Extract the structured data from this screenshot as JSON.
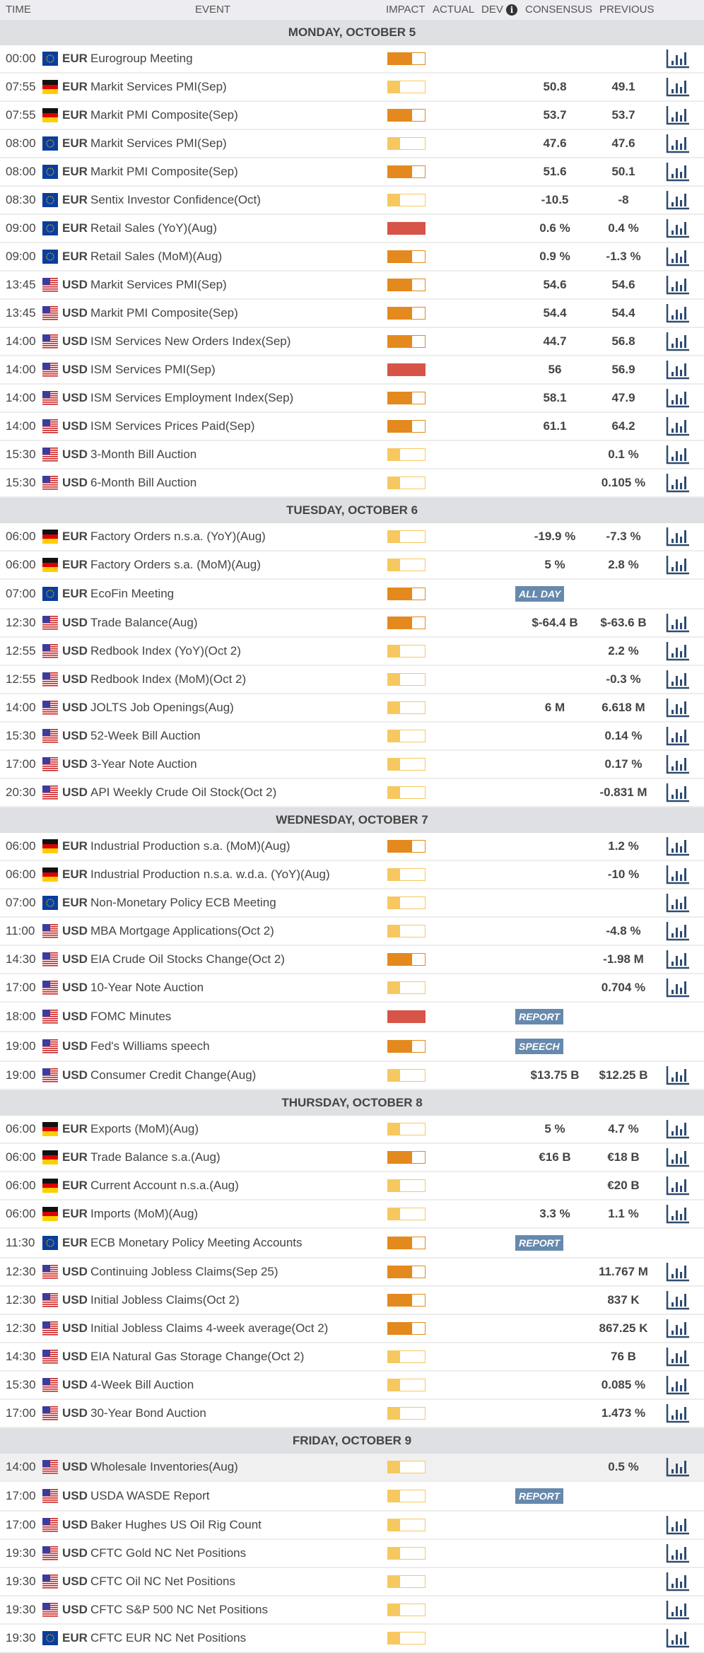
{
  "header": {
    "time": "TIME",
    "event": "EVENT",
    "impact": "IMPACT",
    "actual": "ACTUAL",
    "dev": "DEV",
    "info_icon": "i",
    "consensus": "CONSENSUS",
    "previous": "PREVIOUS"
  },
  "colors": {
    "low": "#f6c85f",
    "medium": "#e4891d",
    "high": "#d65548",
    "badge": "#6689ad",
    "chart_icon": "#2f4b6e"
  },
  "impact_levels": {
    "low": 0.33,
    "medium": 0.66,
    "high": 1
  },
  "days": [
    {
      "label": "MONDAY, OCTOBER 5",
      "events": [
        {
          "time": "00:00",
          "flag": "eu",
          "currency": "EUR",
          "event": "Eurogroup Meeting",
          "impact": "medium",
          "consensus": "",
          "previous": "",
          "chart": true
        },
        {
          "time": "07:55",
          "flag": "de",
          "currency": "EUR",
          "event": "Markit Services PMI(Sep)",
          "impact": "low",
          "consensus": "50.8",
          "previous": "49.1",
          "chart": true
        },
        {
          "time": "07:55",
          "flag": "de",
          "currency": "EUR",
          "event": "Markit PMI Composite(Sep)",
          "impact": "medium",
          "consensus": "53.7",
          "previous": "53.7",
          "chart": true
        },
        {
          "time": "08:00",
          "flag": "eu",
          "currency": "EUR",
          "event": "Markit Services PMI(Sep)",
          "impact": "low",
          "consensus": "47.6",
          "previous": "47.6",
          "chart": true
        },
        {
          "time": "08:00",
          "flag": "eu",
          "currency": "EUR",
          "event": "Markit PMI Composite(Sep)",
          "impact": "medium",
          "consensus": "51.6",
          "previous": "50.1",
          "chart": true
        },
        {
          "time": "08:30",
          "flag": "eu",
          "currency": "EUR",
          "event": "Sentix Investor Confidence(Oct)",
          "impact": "low",
          "consensus": "-10.5",
          "previous": "-8",
          "chart": true
        },
        {
          "time": "09:00",
          "flag": "eu",
          "currency": "EUR",
          "event": "Retail Sales (YoY)(Aug)",
          "impact": "high",
          "consensus": "0.6 %",
          "previous": "0.4 %",
          "chart": true
        },
        {
          "time": "09:00",
          "flag": "eu",
          "currency": "EUR",
          "event": "Retail Sales (MoM)(Aug)",
          "impact": "medium",
          "consensus": "0.9 %",
          "previous": "-1.3 %",
          "chart": true
        },
        {
          "time": "13:45",
          "flag": "us",
          "currency": "USD",
          "event": "Markit Services PMI(Sep)",
          "impact": "medium",
          "consensus": "54.6",
          "previous": "54.6",
          "chart": true
        },
        {
          "time": "13:45",
          "flag": "us",
          "currency": "USD",
          "event": "Markit PMI Composite(Sep)",
          "impact": "medium",
          "consensus": "54.4",
          "previous": "54.4",
          "chart": true
        },
        {
          "time": "14:00",
          "flag": "us",
          "currency": "USD",
          "event": "ISM Services New Orders Index(Sep)",
          "impact": "medium",
          "consensus": "44.7",
          "previous": "56.8",
          "chart": true
        },
        {
          "time": "14:00",
          "flag": "us",
          "currency": "USD",
          "event": "ISM Services PMI(Sep)",
          "impact": "high",
          "consensus": "56",
          "previous": "56.9",
          "chart": true
        },
        {
          "time": "14:00",
          "flag": "us",
          "currency": "USD",
          "event": "ISM Services Employment Index(Sep)",
          "impact": "medium",
          "consensus": "58.1",
          "previous": "47.9",
          "chart": true
        },
        {
          "time": "14:00",
          "flag": "us",
          "currency": "USD",
          "event": "ISM Services Prices Paid(Sep)",
          "impact": "medium",
          "consensus": "61.1",
          "previous": "64.2",
          "chart": true
        },
        {
          "time": "15:30",
          "flag": "us",
          "currency": "USD",
          "event": "3-Month Bill Auction",
          "impact": "low",
          "consensus": "",
          "previous": "0.1 %",
          "chart": true
        },
        {
          "time": "15:30",
          "flag": "us",
          "currency": "USD",
          "event": "6-Month Bill Auction",
          "impact": "low",
          "consensus": "",
          "previous": "0.105 %",
          "chart": true
        }
      ]
    },
    {
      "label": "TUESDAY, OCTOBER 6",
      "events": [
        {
          "time": "06:00",
          "flag": "de",
          "currency": "EUR",
          "event": "Factory Orders n.s.a. (YoY)(Aug)",
          "impact": "low",
          "consensus": "-19.9 %",
          "previous": "-7.3 %",
          "chart": true
        },
        {
          "time": "06:00",
          "flag": "de",
          "currency": "EUR",
          "event": "Factory Orders s.a. (MoM)(Aug)",
          "impact": "low",
          "consensus": "5 %",
          "previous": "2.8 %",
          "chart": true
        },
        {
          "time": "07:00",
          "flag": "eu",
          "currency": "EUR",
          "event": "EcoFin Meeting",
          "impact": "medium",
          "badge": "ALL DAY",
          "consensus": "",
          "previous": "",
          "chart": false
        },
        {
          "time": "12:30",
          "flag": "us",
          "currency": "USD",
          "event": "Trade Balance(Aug)",
          "impact": "medium",
          "consensus": "$-64.4 B",
          "previous": "$-63.6 B",
          "chart": true
        },
        {
          "time": "12:55",
          "flag": "us",
          "currency": "USD",
          "event": "Redbook Index (YoY)(Oct 2)",
          "impact": "low",
          "consensus": "",
          "previous": "2.2 %",
          "chart": true
        },
        {
          "time": "12:55",
          "flag": "us",
          "currency": "USD",
          "event": "Redbook Index (MoM)(Oct 2)",
          "impact": "low",
          "consensus": "",
          "previous": "-0.3 %",
          "chart": true
        },
        {
          "time": "14:00",
          "flag": "us",
          "currency": "USD",
          "event": "JOLTS Job Openings(Aug)",
          "impact": "low",
          "consensus": "6 M",
          "previous": "6.618 M",
          "chart": true
        },
        {
          "time": "15:30",
          "flag": "us",
          "currency": "USD",
          "event": "52-Week Bill Auction",
          "impact": "low",
          "consensus": "",
          "previous": "0.14 %",
          "chart": true
        },
        {
          "time": "17:00",
          "flag": "us",
          "currency": "USD",
          "event": "3-Year Note Auction",
          "impact": "low",
          "consensus": "",
          "previous": "0.17 %",
          "chart": true
        },
        {
          "time": "20:30",
          "flag": "us",
          "currency": "USD",
          "event": "API Weekly Crude Oil Stock(Oct 2)",
          "impact": "low",
          "consensus": "",
          "previous": "-0.831 M",
          "chart": true
        }
      ]
    },
    {
      "label": "WEDNESDAY, OCTOBER 7",
      "events": [
        {
          "time": "06:00",
          "flag": "de",
          "currency": "EUR",
          "event": "Industrial Production s.a. (MoM)(Aug)",
          "impact": "medium",
          "consensus": "",
          "previous": "1.2 %",
          "chart": true
        },
        {
          "time": "06:00",
          "flag": "de",
          "currency": "EUR",
          "event": "Industrial Production n.s.a. w.d.a. (YoY)(Aug)",
          "impact": "low",
          "consensus": "",
          "previous": "-10 %",
          "chart": true
        },
        {
          "time": "07:00",
          "flag": "eu",
          "currency": "EUR",
          "event": "Non-Monetary Policy ECB Meeting",
          "impact": "low",
          "consensus": "",
          "previous": "",
          "chart": true
        },
        {
          "time": "11:00",
          "flag": "us",
          "currency": "USD",
          "event": "MBA Mortgage Applications(Oct 2)",
          "impact": "low",
          "consensus": "",
          "previous": "-4.8 %",
          "chart": true
        },
        {
          "time": "14:30",
          "flag": "us",
          "currency": "USD",
          "event": "EIA Crude Oil Stocks Change(Oct 2)",
          "impact": "medium",
          "consensus": "",
          "previous": "-1.98 M",
          "chart": true
        },
        {
          "time": "17:00",
          "flag": "us",
          "currency": "USD",
          "event": "10-Year Note Auction",
          "impact": "low",
          "consensus": "",
          "previous": "0.704 %",
          "chart": true
        },
        {
          "time": "18:00",
          "flag": "us",
          "currency": "USD",
          "event": "FOMC Minutes",
          "impact": "high",
          "badge": "REPORT",
          "consensus": "",
          "previous": "",
          "chart": false
        },
        {
          "time": "19:00",
          "flag": "us",
          "currency": "USD",
          "event": "Fed's Williams speech",
          "impact": "medium",
          "badge": "SPEECH",
          "consensus": "",
          "previous": "",
          "chart": false
        },
        {
          "time": "19:00",
          "flag": "us",
          "currency": "USD",
          "event": "Consumer Credit Change(Aug)",
          "impact": "low",
          "consensus": "$13.75 B",
          "previous": "$12.25 B",
          "chart": true
        }
      ]
    },
    {
      "label": "THURSDAY, OCTOBER 8",
      "events": [
        {
          "time": "06:00",
          "flag": "de",
          "currency": "EUR",
          "event": "Exports (MoM)(Aug)",
          "impact": "low",
          "consensus": "5 %",
          "previous": "4.7 %",
          "chart": true
        },
        {
          "time": "06:00",
          "flag": "de",
          "currency": "EUR",
          "event": "Trade Balance s.a.(Aug)",
          "impact": "medium",
          "consensus": "€16 B",
          "previous": "€18 B",
          "chart": true
        },
        {
          "time": "06:00",
          "flag": "de",
          "currency": "EUR",
          "event": "Current Account n.s.a.(Aug)",
          "impact": "low",
          "consensus": "",
          "previous": "€20 B",
          "chart": true
        },
        {
          "time": "06:00",
          "flag": "de",
          "currency": "EUR",
          "event": "Imports (MoM)(Aug)",
          "impact": "low",
          "consensus": "3.3 %",
          "previous": "1.1 %",
          "chart": true
        },
        {
          "time": "11:30",
          "flag": "eu",
          "currency": "EUR",
          "event": "ECB Monetary Policy Meeting Accounts",
          "impact": "medium",
          "badge": "REPORT",
          "consensus": "",
          "previous": "",
          "chart": false
        },
        {
          "time": "12:30",
          "flag": "us",
          "currency": "USD",
          "event": "Continuing Jobless Claims(Sep 25)",
          "impact": "medium",
          "consensus": "",
          "previous": "11.767 M",
          "chart": true
        },
        {
          "time": "12:30",
          "flag": "us",
          "currency": "USD",
          "event": "Initial Jobless Claims(Oct 2)",
          "impact": "medium",
          "consensus": "",
          "previous": "837 K",
          "chart": true
        },
        {
          "time": "12:30",
          "flag": "us",
          "currency": "USD",
          "event": "Initial Jobless Claims 4-week average(Oct 2)",
          "impact": "medium",
          "consensus": "",
          "previous": "867.25 K",
          "chart": true
        },
        {
          "time": "14:30",
          "flag": "us",
          "currency": "USD",
          "event": "EIA Natural Gas Storage Change(Oct 2)",
          "impact": "low",
          "consensus": "",
          "previous": "76 B",
          "chart": true
        },
        {
          "time": "15:30",
          "flag": "us",
          "currency": "USD",
          "event": "4-Week Bill Auction",
          "impact": "low",
          "consensus": "",
          "previous": "0.085 %",
          "chart": true
        },
        {
          "time": "17:00",
          "flag": "us",
          "currency": "USD",
          "event": "30-Year Bond Auction",
          "impact": "low",
          "consensus": "",
          "previous": "1.473 %",
          "chart": true
        }
      ]
    },
    {
      "label": "FRIDAY, OCTOBER 9",
      "events": [
        {
          "time": "14:00",
          "flag": "us",
          "currency": "USD",
          "event": "Wholesale Inventories(Aug)",
          "impact": "low",
          "consensus": "",
          "previous": "0.5 %",
          "chart": true,
          "highlight": true
        },
        {
          "time": "17:00",
          "flag": "us",
          "currency": "USD",
          "event": "USDA WASDE Report",
          "impact": "low",
          "badge": "REPORT",
          "consensus": "",
          "previous": "",
          "chart": false
        },
        {
          "time": "17:00",
          "flag": "us",
          "currency": "USD",
          "event": "Baker Hughes US Oil Rig Count",
          "impact": "low",
          "consensus": "",
          "previous": "",
          "chart": true
        },
        {
          "time": "19:30",
          "flag": "us",
          "currency": "USD",
          "event": "CFTC Gold NC Net Positions",
          "impact": "low",
          "consensus": "",
          "previous": "",
          "chart": true
        },
        {
          "time": "19:30",
          "flag": "us",
          "currency": "USD",
          "event": "CFTC Oil NC Net Positions",
          "impact": "low",
          "consensus": "",
          "previous": "",
          "chart": true
        },
        {
          "time": "19:30",
          "flag": "us",
          "currency": "USD",
          "event": "CFTC S&P 500 NC Net Positions",
          "impact": "low",
          "consensus": "",
          "previous": "",
          "chart": true
        },
        {
          "time": "19:30",
          "flag": "eu",
          "currency": "EUR",
          "event": "CFTC EUR NC Net Positions",
          "impact": "low",
          "consensus": "",
          "previous": "",
          "chart": true
        }
      ]
    }
  ]
}
